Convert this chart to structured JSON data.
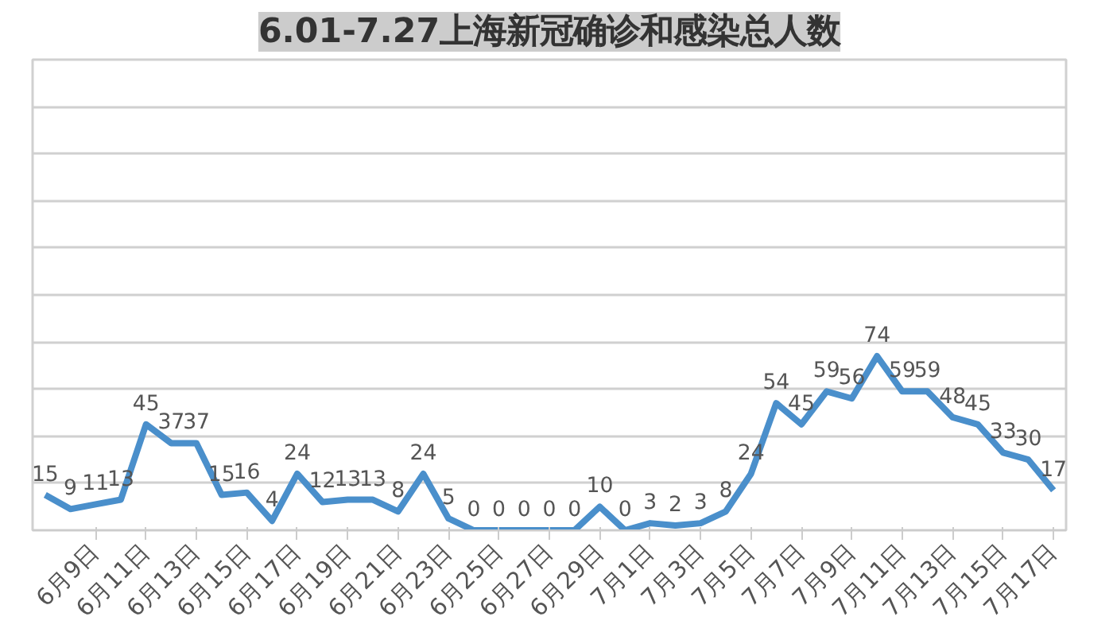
{
  "chart_data": {
    "type": "line",
    "title": "6.01-7.27上海新冠确诊和感染总人数",
    "categories": [
      null,
      null,
      "6月9日",
      null,
      "6月11日",
      null,
      "6月13日",
      null,
      "6月15日",
      null,
      "6月17日",
      null,
      "6月19日",
      null,
      "6月21日",
      null,
      "6月23日",
      null,
      "6月25日",
      null,
      "6月27日",
      null,
      "6月29日",
      null,
      "7月1日",
      null,
      "7月3日",
      null,
      "7月5日",
      null,
      "7月7日",
      null,
      "7月9日",
      null,
      "7月11日",
      null,
      "7月13日",
      null,
      "7月15日",
      null,
      "7月17日"
    ],
    "series": [
      {
        "color": "#4a8fcb",
        "values": [
          15,
          9,
          11,
          13,
          45,
          37,
          37,
          15,
          16,
          4,
          24,
          12,
          13,
          13,
          8,
          24,
          5,
          0,
          0,
          0,
          0,
          0,
          10,
          0,
          3,
          2,
          3,
          8,
          24,
          54,
          45,
          59,
          56,
          74,
          59,
          59,
          48,
          45,
          33,
          30,
          17
        ]
      }
    ],
    "ylim": [
      0,
      200
    ],
    "yticks": [
      {
        "value": 0,
        "label": null
      },
      {
        "value": 20,
        "label": null
      },
      {
        "value": 40,
        "label": null
      },
      {
        "value": 60,
        "label": null
      },
      {
        "value": 80,
        "label": null
      },
      {
        "value": 100,
        "label": null
      },
      {
        "value": 120,
        "label": null
      },
      {
        "value": 140,
        "label": null
      },
      {
        "value": 160,
        "label": null
      },
      {
        "value": 180,
        "label": null
      },
      {
        "value": 200,
        "label": null
      }
    ],
    "grid": "y",
    "data_labels": true,
    "tick_labels": "x",
    "marker": "none",
    "line_style": "solid"
  }
}
